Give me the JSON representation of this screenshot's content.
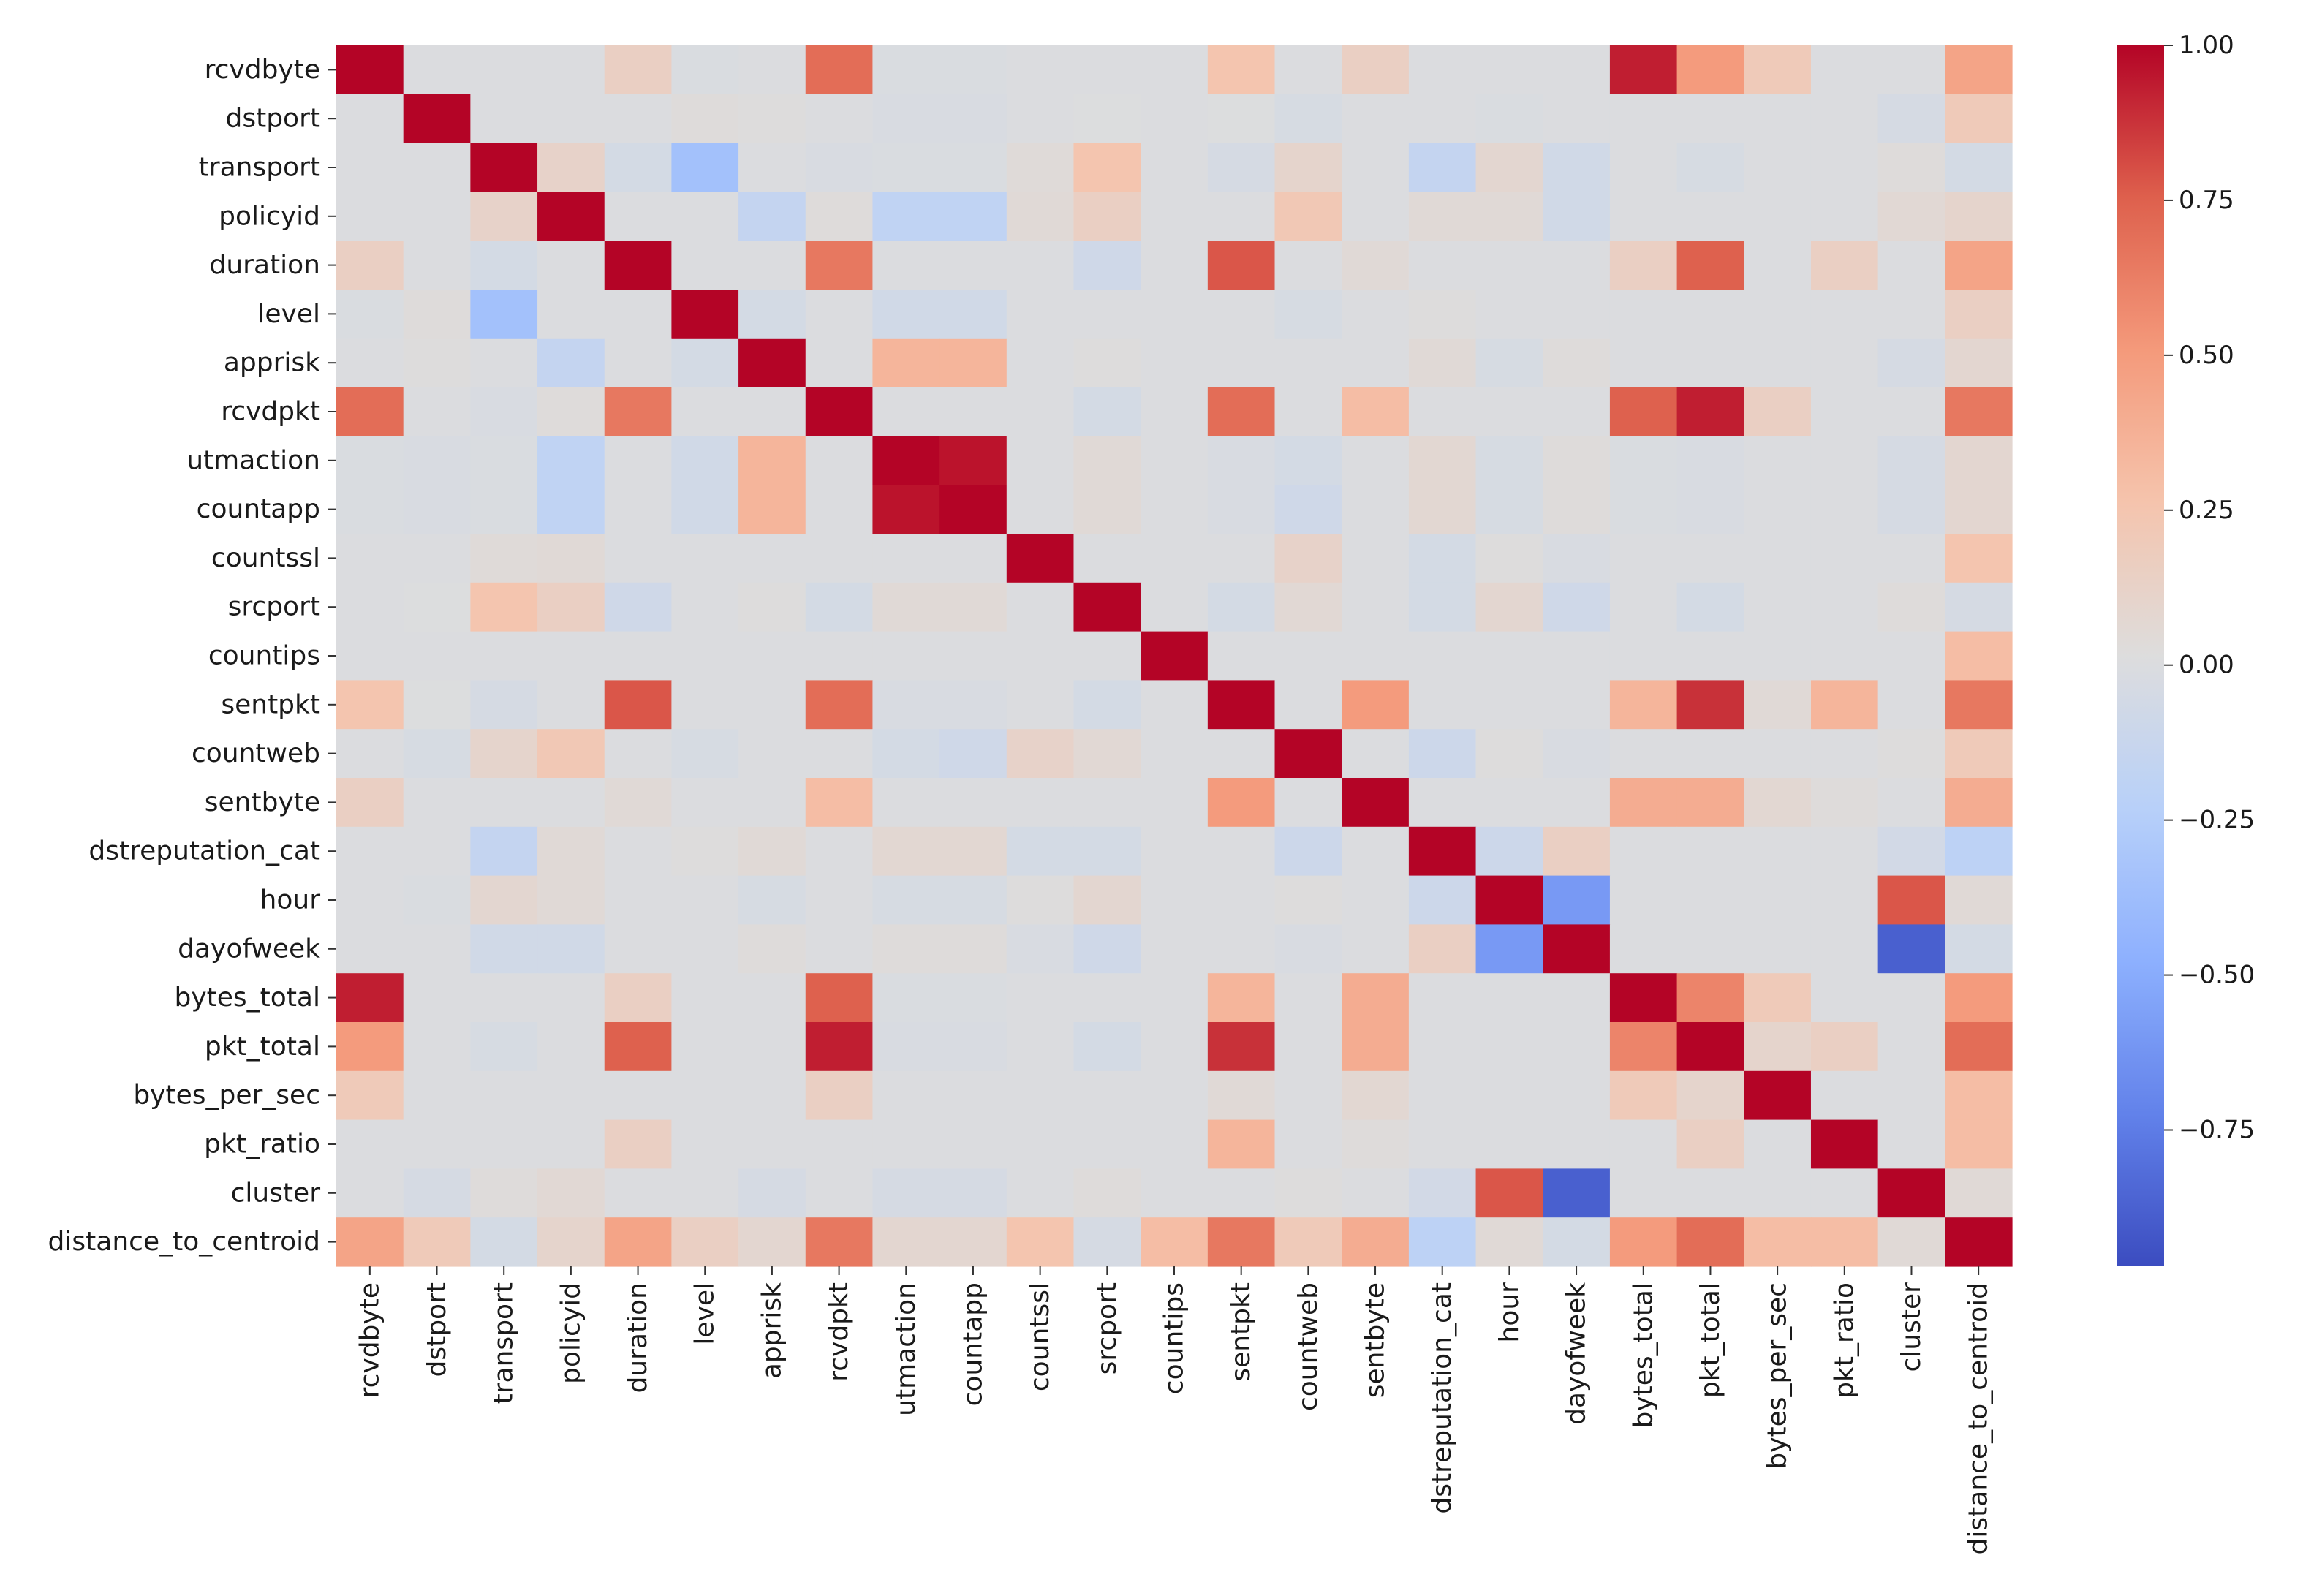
{
  "chart_data": {
    "type": "heatmap",
    "title": "",
    "xlabel": "",
    "ylabel": "",
    "variables": [
      "rcvdbyte",
      "dstport",
      "transport",
      "policyid",
      "duration",
      "level",
      "apprisk",
      "rcvdpkt",
      "utmaction",
      "countapp",
      "countssl",
      "srcport",
      "countips",
      "sentpkt",
      "countweb",
      "sentbyte",
      "dstreputation_cat",
      "hour",
      "dayofweek",
      "bytes_total",
      "pkt_total",
      "bytes_per_sec",
      "pkt_ratio",
      "cluster",
      "distance_to_centroid"
    ],
    "colormap": "coolwarm",
    "vmin": -0.97,
    "vmax": 1.0,
    "colorbar_ticks": [
      1.0,
      0.75,
      0.5,
      0.25,
      0.0,
      -0.25,
      -0.5,
      -0.75
    ],
    "colorbar_tick_labels": [
      "1.00",
      "0.75",
      "0.50",
      "0.25",
      "0.00",
      "−0.25",
      "−0.50",
      "−0.75"
    ],
    "matrix": [
      [
        1.0,
        0.0,
        0.0,
        0.0,
        0.15,
        -0.01,
        0.0,
        0.7,
        -0.01,
        -0.01,
        0.0,
        0.0,
        0.0,
        0.25,
        0.0,
        0.15,
        0.0,
        0.0,
        0.0,
        0.93,
        0.5,
        0.2,
        0.0,
        0.0,
        0.45
      ],
      [
        0.0,
        1.0,
        0.0,
        0.0,
        0.0,
        0.03,
        0.02,
        0.0,
        -0.02,
        -0.02,
        0.0,
        0.01,
        0.0,
        0.01,
        -0.03,
        0.0,
        0.0,
        -0.01,
        0.0,
        0.0,
        0.0,
        0.0,
        0.0,
        -0.04,
        0.2
      ],
      [
        0.0,
        0.0,
        1.0,
        0.12,
        -0.05,
        -0.35,
        0.0,
        -0.02,
        -0.01,
        -0.01,
        0.04,
        0.25,
        0.0,
        -0.04,
        0.1,
        0.0,
        -0.15,
        0.08,
        -0.07,
        0.0,
        -0.03,
        0.0,
        0.0,
        0.03,
        -0.05
      ],
      [
        0.0,
        0.0,
        0.12,
        1.0,
        0.0,
        0.0,
        -0.15,
        0.03,
        -0.18,
        -0.18,
        0.05,
        0.15,
        0.0,
        0.0,
        0.22,
        0.0,
        0.05,
        0.05,
        -0.07,
        0.0,
        0.0,
        0.0,
        0.0,
        0.06,
        0.1
      ],
      [
        0.15,
        0.0,
        -0.05,
        0.0,
        1.0,
        0.0,
        0.0,
        0.65,
        0.0,
        0.0,
        0.0,
        -0.08,
        0.0,
        0.78,
        0.0,
        0.05,
        0.0,
        0.0,
        0.0,
        0.15,
        0.75,
        0.0,
        0.15,
        0.0,
        0.45
      ],
      [
        -0.01,
        0.03,
        -0.35,
        0.0,
        0.0,
        1.0,
        -0.05,
        0.0,
        -0.07,
        -0.07,
        0.0,
        0.0,
        0.0,
        0.0,
        -0.03,
        0.0,
        0.02,
        0.0,
        0.0,
        0.0,
        0.0,
        0.0,
        0.0,
        0.0,
        0.15
      ],
      [
        0.0,
        0.02,
        0.0,
        -0.15,
        0.0,
        -0.05,
        1.0,
        0.0,
        0.35,
        0.35,
        0.0,
        0.02,
        0.0,
        0.0,
        0.0,
        0.0,
        0.05,
        -0.03,
        0.03,
        0.0,
        0.0,
        0.0,
        0.0,
        -0.04,
        0.08
      ],
      [
        0.7,
        0.0,
        -0.02,
        0.03,
        0.65,
        0.0,
        0.0,
        1.0,
        0.0,
        0.0,
        0.0,
        -0.05,
        0.0,
        0.7,
        0.0,
        0.3,
        0.0,
        0.0,
        0.0,
        0.75,
        0.93,
        0.15,
        0.0,
        0.0,
        0.65
      ],
      [
        -0.01,
        -0.02,
        -0.01,
        -0.18,
        0.0,
        -0.07,
        0.35,
        0.0,
        1.0,
        0.96,
        0.0,
        0.05,
        0.0,
        -0.02,
        -0.05,
        0.0,
        0.07,
        -0.03,
        0.03,
        -0.01,
        -0.02,
        0.0,
        0.0,
        -0.04,
        0.08
      ],
      [
        -0.01,
        -0.02,
        -0.01,
        -0.18,
        0.0,
        -0.07,
        0.35,
        0.0,
        0.96,
        1.0,
        0.0,
        0.05,
        0.0,
        -0.02,
        -0.08,
        0.0,
        0.07,
        -0.03,
        0.03,
        -0.01,
        -0.02,
        0.0,
        0.0,
        -0.04,
        0.08
      ],
      [
        0.0,
        0.0,
        0.04,
        0.05,
        0.0,
        0.0,
        0.0,
        0.0,
        0.0,
        0.0,
        1.0,
        0.0,
        0.0,
        0.0,
        0.12,
        0.0,
        -0.05,
        0.02,
        -0.02,
        0.0,
        0.0,
        0.0,
        0.0,
        0.0,
        0.25
      ],
      [
        0.0,
        0.01,
        0.25,
        0.15,
        -0.08,
        0.0,
        0.02,
        -0.05,
        0.05,
        0.05,
        0.0,
        1.0,
        0.0,
        -0.05,
        0.06,
        0.0,
        -0.05,
        0.08,
        -0.08,
        0.0,
        -0.05,
        0.0,
        0.0,
        0.03,
        -0.04
      ],
      [
        0.0,
        0.0,
        0.0,
        0.0,
        0.0,
        0.0,
        0.0,
        0.0,
        0.0,
        0.0,
        0.0,
        0.0,
        1.0,
        0.0,
        0.0,
        0.0,
        0.0,
        0.0,
        0.0,
        0.0,
        0.0,
        0.0,
        0.0,
        0.0,
        0.3
      ],
      [
        0.25,
        0.01,
        -0.04,
        0.0,
        0.78,
        0.0,
        0.0,
        0.7,
        -0.02,
        -0.02,
        0.0,
        -0.05,
        0.0,
        1.0,
        0.0,
        0.5,
        0.0,
        0.0,
        0.0,
        0.35,
        0.88,
        0.05,
        0.35,
        0.0,
        0.65
      ],
      [
        0.0,
        -0.03,
        0.1,
        0.22,
        0.0,
        -0.03,
        0.0,
        0.0,
        -0.05,
        -0.08,
        0.12,
        0.06,
        0.0,
        0.0,
        1.0,
        0.0,
        -0.1,
        0.02,
        -0.02,
        0.0,
        0.0,
        0.0,
        0.0,
        0.02,
        0.2
      ],
      [
        0.15,
        0.0,
        0.0,
        0.0,
        0.05,
        0.0,
        0.0,
        0.3,
        0.0,
        0.0,
        0.0,
        0.0,
        0.0,
        0.5,
        0.0,
        1.0,
        0.0,
        0.0,
        0.0,
        0.4,
        0.4,
        0.07,
        0.03,
        0.0,
        0.4
      ],
      [
        0.0,
        0.0,
        -0.15,
        0.05,
        0.0,
        0.02,
        0.05,
        0.0,
        0.07,
        0.07,
        -0.05,
        -0.05,
        0.0,
        0.0,
        -0.1,
        0.0,
        1.0,
        -0.1,
        0.15,
        0.0,
        0.0,
        0.0,
        0.0,
        -0.06,
        -0.2
      ],
      [
        0.0,
        -0.01,
        0.08,
        0.05,
        0.0,
        0.0,
        -0.03,
        0.0,
        -0.03,
        -0.03,
        0.02,
        0.08,
        0.0,
        0.0,
        0.02,
        0.0,
        -0.1,
        1.0,
        -0.6,
        0.0,
        0.0,
        0.0,
        0.0,
        0.78,
        0.05
      ],
      [
        0.0,
        0.0,
        -0.07,
        -0.07,
        0.0,
        0.0,
        0.03,
        0.0,
        0.03,
        0.03,
        -0.02,
        -0.08,
        0.0,
        0.0,
        -0.02,
        0.0,
        0.15,
        -0.6,
        1.0,
        0.0,
        0.0,
        0.0,
        0.0,
        -0.88,
        -0.05
      ],
      [
        0.93,
        0.0,
        0.0,
        0.0,
        0.15,
        0.0,
        0.0,
        0.75,
        -0.01,
        -0.01,
        0.0,
        0.0,
        0.0,
        0.35,
        0.0,
        0.4,
        0.0,
        0.0,
        0.0,
        1.0,
        0.6,
        0.2,
        0.0,
        0.0,
        0.5
      ],
      [
        0.5,
        0.0,
        -0.03,
        0.0,
        0.75,
        0.0,
        0.0,
        0.93,
        -0.02,
        -0.02,
        0.0,
        -0.05,
        0.0,
        0.88,
        0.0,
        0.4,
        0.0,
        0.0,
        0.0,
        0.6,
        1.0,
        0.1,
        0.15,
        0.0,
        0.7
      ],
      [
        0.2,
        0.0,
        0.0,
        0.0,
        0.0,
        0.0,
        0.0,
        0.15,
        0.0,
        0.0,
        0.0,
        0.0,
        0.0,
        0.05,
        0.0,
        0.07,
        0.0,
        0.0,
        0.0,
        0.2,
        0.1,
        1.0,
        0.0,
        0.0,
        0.3
      ],
      [
        0.0,
        0.0,
        0.0,
        0.0,
        0.15,
        0.0,
        0.0,
        0.0,
        0.0,
        0.0,
        0.0,
        0.0,
        0.0,
        0.35,
        0.0,
        0.03,
        0.0,
        0.0,
        0.0,
        0.0,
        0.15,
        0.0,
        1.0,
        0.0,
        0.3
      ],
      [
        0.0,
        -0.04,
        0.03,
        0.06,
        0.0,
        0.0,
        -0.04,
        0.0,
        -0.04,
        -0.04,
        0.0,
        0.03,
        0.0,
        0.0,
        0.02,
        0.0,
        -0.06,
        0.78,
        -0.88,
        0.0,
        0.0,
        0.0,
        0.0,
        1.0,
        0.05
      ],
      [
        0.45,
        0.2,
        -0.05,
        0.1,
        0.45,
        0.15,
        0.08,
        0.65,
        0.08,
        0.08,
        0.25,
        -0.04,
        0.3,
        0.65,
        0.2,
        0.4,
        -0.2,
        0.05,
        -0.05,
        0.5,
        0.7,
        0.3,
        0.3,
        0.05,
        1.0
      ]
    ]
  }
}
